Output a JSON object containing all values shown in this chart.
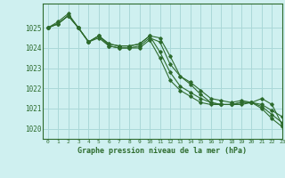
{
  "title": "Graphe pression niveau de la mer (hPa)",
  "background_color": "#cff0f0",
  "grid_color": "#aad8d8",
  "line_color": "#2d6b2d",
  "xlim": [
    -0.5,
    23
  ],
  "ylim": [
    1019.5,
    1026.2
  ],
  "yticks": [
    1020,
    1021,
    1022,
    1023,
    1024,
    1025
  ],
  "xticks": [
    0,
    1,
    2,
    3,
    4,
    5,
    6,
    7,
    8,
    9,
    10,
    11,
    12,
    13,
    14,
    15,
    16,
    17,
    18,
    19,
    20,
    21,
    22,
    23
  ],
  "series": [
    [
      1025.0,
      1025.3,
      1025.7,
      1025.0,
      1024.3,
      1024.6,
      1024.1,
      1024.0,
      1024.0,
      1024.1,
      1024.5,
      1024.3,
      1023.2,
      1022.6,
      1022.2,
      1021.7,
      1021.3,
      1021.2,
      1021.2,
      1021.3,
      1021.3,
      1021.0,
      1020.5,
      1020.1
    ],
    [
      1025.0,
      1025.2,
      1025.6,
      1025.0,
      1024.3,
      1024.5,
      1024.1,
      1024.0,
      1024.0,
      1024.0,
      1024.4,
      1023.5,
      1022.4,
      1021.9,
      1021.6,
      1021.3,
      1021.2,
      1021.2,
      1021.2,
      1021.2,
      1021.3,
      1021.5,
      1021.2,
      1020.2
    ],
    [
      1025.0,
      1025.2,
      1025.6,
      1025.0,
      1024.3,
      1024.6,
      1024.2,
      1024.1,
      1024.1,
      1024.2,
      1024.6,
      1024.5,
      1023.6,
      1022.6,
      1022.3,
      1021.9,
      1021.5,
      1021.4,
      1021.3,
      1021.4,
      1021.3,
      1021.1,
      1020.7,
      1020.3
    ],
    [
      1025.0,
      1025.2,
      1025.6,
      1025.0,
      1024.3,
      1024.6,
      1024.2,
      1024.1,
      1024.1,
      1024.2,
      1024.6,
      1023.8,
      1022.8,
      1022.1,
      1021.8,
      1021.5,
      1021.3,
      1021.2,
      1021.2,
      1021.3,
      1021.3,
      1021.2,
      1020.9,
      1020.6
    ]
  ]
}
